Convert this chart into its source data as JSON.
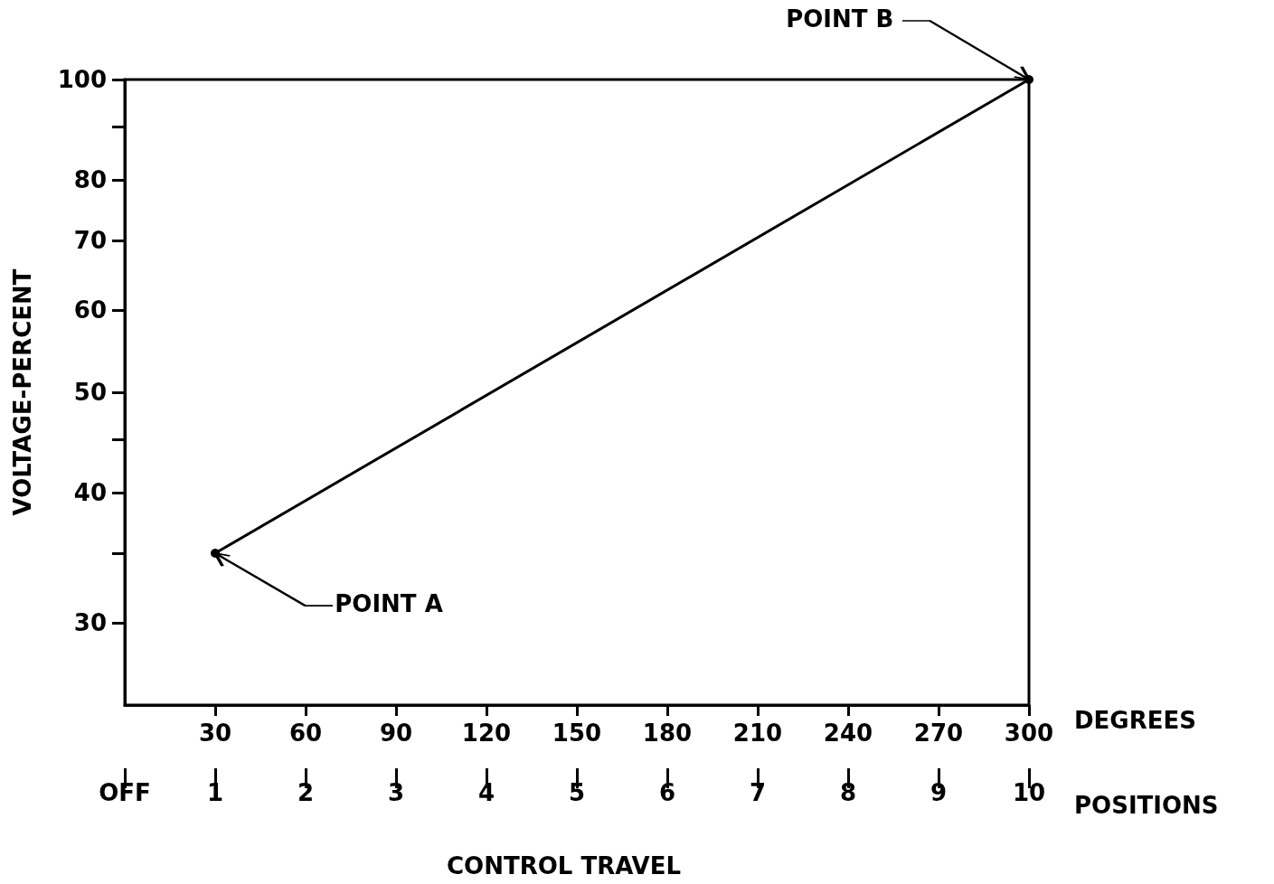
{
  "chart_data": {
    "type": "line",
    "xlabel": "DEGREES",
    "x2label": "POSITIONS",
    "ylabel": "VOLTAGE-PERCENT",
    "x": [
      30,
      300
    ],
    "series": [
      {
        "color": "#000000",
        "values": [
          35,
          100
        ]
      }
    ],
    "xlim": [
      0,
      300
    ],
    "xticks": [
      30,
      60,
      90,
      120,
      150,
      180,
      210,
      240,
      270,
      300
    ],
    "x2lim": [
      0,
      10
    ],
    "x2ticks": [
      {
        "value": 0,
        "label": "OFF"
      },
      1,
      2,
      3,
      4,
      5,
      6,
      7,
      8,
      9,
      10
    ],
    "ylim": [
      25,
      100
    ],
    "yticks": [
      30,
      {
        "value": 35,
        "label": null
      },
      40,
      {
        "value": 45,
        "label": null
      },
      50,
      60,
      70,
      80,
      {
        "value": 90,
        "label": null
      },
      100
    ],
    "log": "y",
    "grid": false,
    "marker": "circle",
    "line_style": "solid",
    "annotations": [
      {
        "text": "POINT A",
        "x": 30,
        "y": 35
      },
      {
        "text": "POINT B",
        "x": 300,
        "y": 100
      },
      "CONTROL TRAVEL"
    ]
  }
}
